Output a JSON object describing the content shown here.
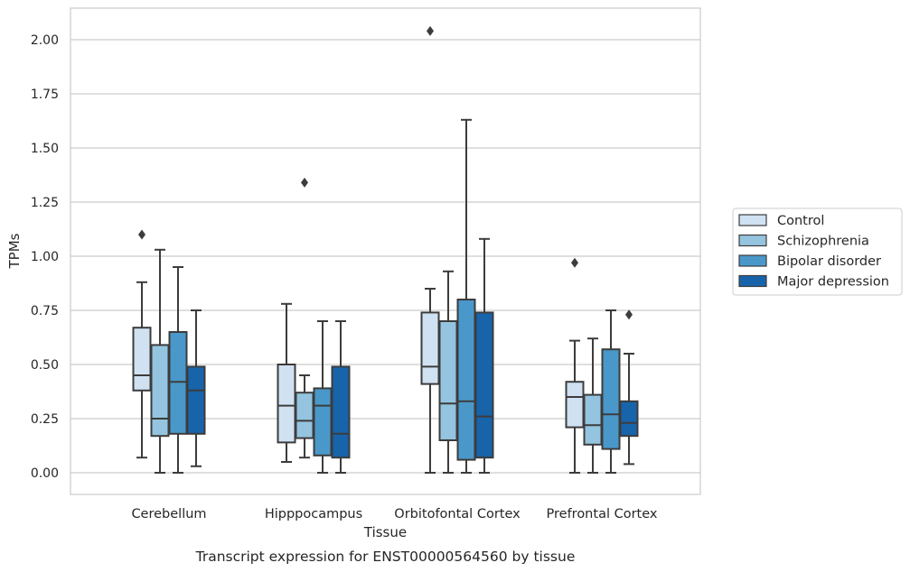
{
  "chart_data": {
    "type": "boxplot",
    "xlabel": "Tissue",
    "ylabel": "TPMs",
    "caption": "Transcript expression for ENST00000564560 by tissue",
    "ylim": [
      -0.1,
      2.15
    ],
    "yticks": [
      "0.00",
      "0.25",
      "0.50",
      "0.75",
      "1.00",
      "1.25",
      "1.50",
      "1.75",
      "2.00"
    ],
    "grid": "horizontal",
    "legend_position": "right",
    "categories": [
      "Cerebellum",
      "Hipppocampus",
      "Orbitofontal Cortex",
      "Prefrontal Cortex"
    ],
    "series": [
      {
        "name": "Control",
        "color": "#d0e1f2",
        "boxes": [
          {
            "whisker_low": 0.07,
            "q1": 0.38,
            "median": 0.45,
            "q3": 0.67,
            "whisker_high": 0.88,
            "outliers": [
              1.1
            ]
          },
          {
            "whisker_low": 0.05,
            "q1": 0.14,
            "median": 0.31,
            "q3": 0.5,
            "whisker_high": 0.78,
            "outliers": []
          },
          {
            "whisker_low": 0.0,
            "q1": 0.41,
            "median": 0.49,
            "q3": 0.74,
            "whisker_high": 0.85,
            "outliers": [
              2.04
            ]
          },
          {
            "whisker_low": 0.0,
            "q1": 0.21,
            "median": 0.35,
            "q3": 0.42,
            "whisker_high": 0.61,
            "outliers": [
              0.97
            ]
          }
        ]
      },
      {
        "name": "Schizophrenia",
        "color": "#94c4df",
        "boxes": [
          {
            "whisker_low": 0.0,
            "q1": 0.17,
            "median": 0.25,
            "q3": 0.59,
            "whisker_high": 1.03,
            "outliers": []
          },
          {
            "whisker_low": 0.07,
            "q1": 0.16,
            "median": 0.24,
            "q3": 0.37,
            "whisker_high": 0.45,
            "outliers": [
              1.34
            ]
          },
          {
            "whisker_low": 0.0,
            "q1": 0.15,
            "median": 0.32,
            "q3": 0.7,
            "whisker_high": 0.93,
            "outliers": []
          },
          {
            "whisker_low": 0.0,
            "q1": 0.13,
            "median": 0.22,
            "q3": 0.36,
            "whisker_high": 0.62,
            "outliers": []
          }
        ]
      },
      {
        "name": "Bipolar disorder",
        "color": "#4a98c9",
        "boxes": [
          {
            "whisker_low": 0.0,
            "q1": 0.18,
            "median": 0.42,
            "q3": 0.65,
            "whisker_high": 0.95,
            "outliers": []
          },
          {
            "whisker_low": 0.0,
            "q1": 0.08,
            "median": 0.31,
            "q3": 0.39,
            "whisker_high": 0.7,
            "outliers": []
          },
          {
            "whisker_low": 0.0,
            "q1": 0.06,
            "median": 0.33,
            "q3": 0.8,
            "whisker_high": 1.63,
            "outliers": []
          },
          {
            "whisker_low": 0.0,
            "q1": 0.11,
            "median": 0.27,
            "q3": 0.57,
            "whisker_high": 0.75,
            "outliers": []
          }
        ]
      },
      {
        "name": "Major depression",
        "color": "#1764ab",
        "boxes": [
          {
            "whisker_low": 0.03,
            "q1": 0.18,
            "median": 0.38,
            "q3": 0.49,
            "whisker_high": 0.75,
            "outliers": []
          },
          {
            "whisker_low": 0.0,
            "q1": 0.07,
            "median": 0.18,
            "q3": 0.49,
            "whisker_high": 0.7,
            "outliers": []
          },
          {
            "whisker_low": 0.0,
            "q1": 0.07,
            "median": 0.26,
            "q3": 0.74,
            "whisker_high": 1.08,
            "outliers": []
          },
          {
            "whisker_low": 0.04,
            "q1": 0.17,
            "median": 0.23,
            "q3": 0.33,
            "whisker_high": 0.55,
            "outliers": [
              0.73
            ]
          }
        ]
      }
    ]
  }
}
